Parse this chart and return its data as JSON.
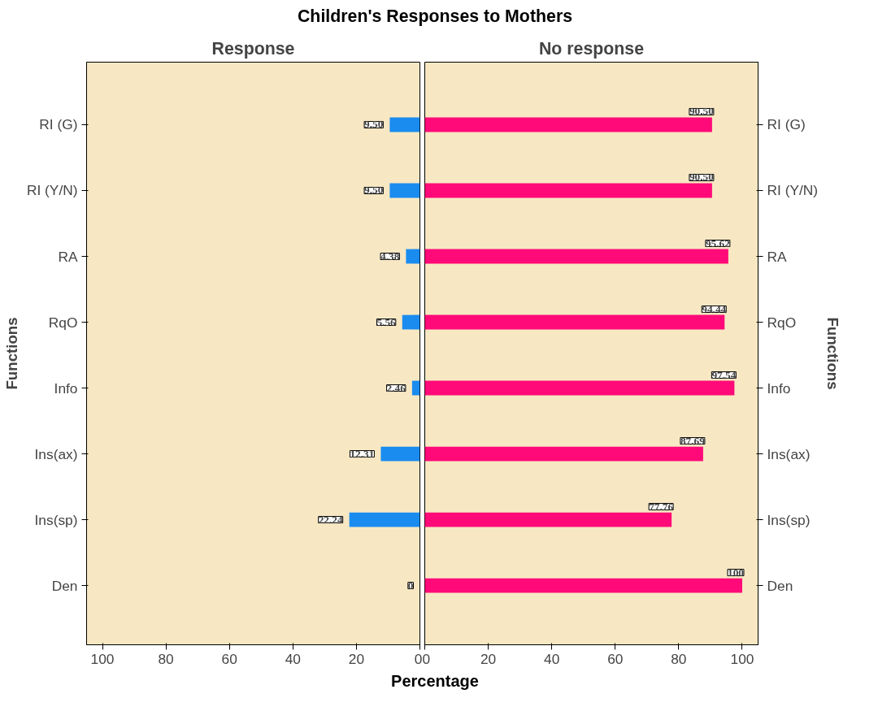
{
  "chart_data": [
    {
      "type": "bar",
      "orientation": "horizontal",
      "title": "Children's Responses to Mothers",
      "subtitle": "Response",
      "xlabel": "Percentage",
      "ylabel": "Functions",
      "categories": [
        "RI (G)",
        "RI (Y/N)",
        "RA",
        "RqO",
        "Info",
        "Ins(ax)",
        "Ins(sp)",
        "Den"
      ],
      "values": [
        9.5,
        9.5,
        4.38,
        5.56,
        2.46,
        12.31,
        22.24,
        0
      ],
      "value_labels": [
        "9.50",
        "9.50",
        "4.38",
        "5.56",
        "2.46",
        "12.31",
        "22.24",
        "0"
      ],
      "color": "#1a8cf0",
      "xlim": [
        105,
        0
      ],
      "xticks": [
        100,
        80,
        60,
        40,
        20,
        0
      ],
      "grid": false
    },
    {
      "type": "bar",
      "orientation": "horizontal",
      "subtitle": "No response",
      "ylabel": "Functions",
      "categories": [
        "RI (G)",
        "RI (Y/N)",
        "RA",
        "RqO",
        "Info",
        "Ins(ax)",
        "Ins(sp)",
        "Den"
      ],
      "values": [
        90.5,
        90.5,
        95.62,
        94.44,
        97.54,
        87.69,
        77.76,
        100
      ],
      "value_labels": [
        "90.50",
        "90.50",
        "95.62",
        "94.44",
        "97.54",
        "87.69",
        "77.76",
        "100"
      ],
      "color": "#ff0a78",
      "xlim": [
        0,
        105
      ],
      "xticks": [
        0,
        20,
        40,
        60,
        80,
        100
      ],
      "grid": false
    }
  ]
}
